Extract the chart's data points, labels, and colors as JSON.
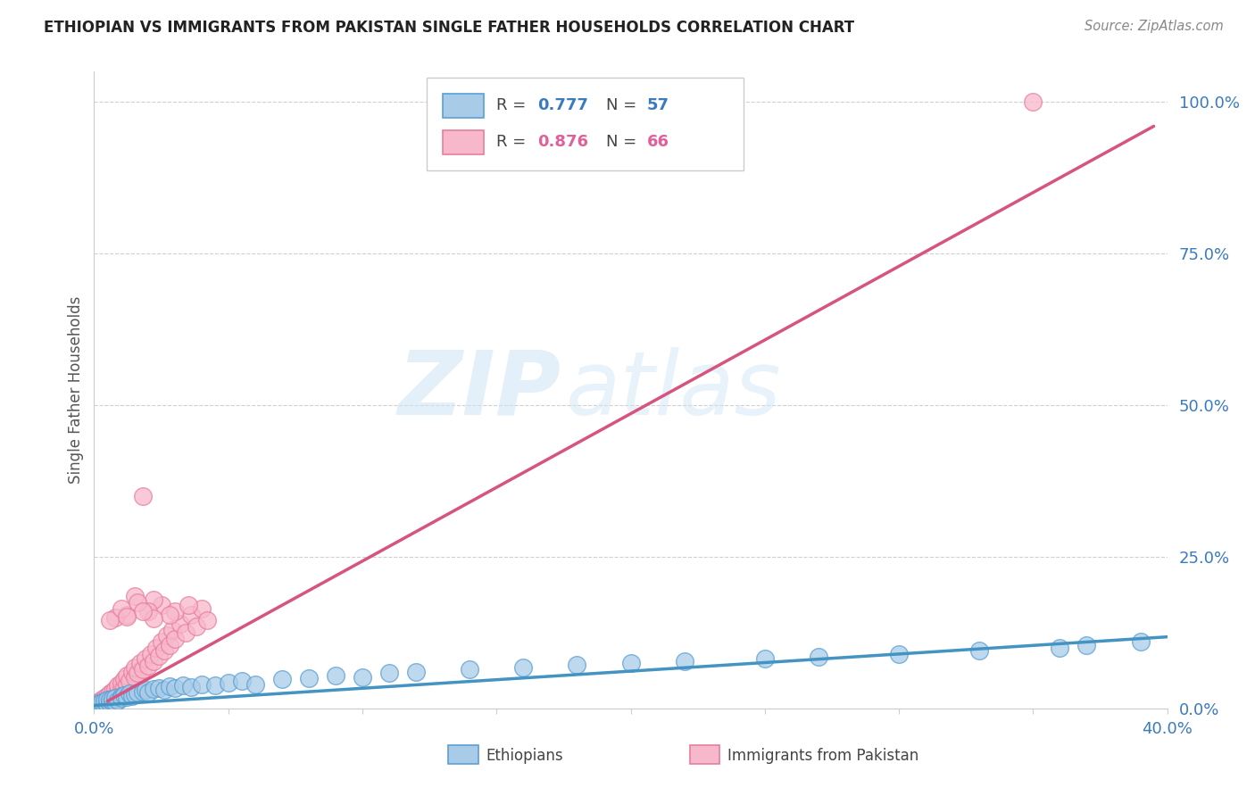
{
  "title": "ETHIOPIAN VS IMMIGRANTS FROM PAKISTAN SINGLE FATHER HOUSEHOLDS CORRELATION CHART",
  "source": "Source: ZipAtlas.com",
  "ylabel_label": "Single Father Households",
  "x_min": 0.0,
  "x_max": 0.4,
  "y_min": 0.0,
  "y_max": 1.05,
  "x_ticks": [
    0.0,
    0.05,
    0.1,
    0.15,
    0.2,
    0.25,
    0.3,
    0.35,
    0.4
  ],
  "y_ticks": [
    0.0,
    0.25,
    0.5,
    0.75,
    1.0
  ],
  "y_tick_labels_right": [
    "0.0%",
    "25.0%",
    "50.0%",
    "75.0%",
    "100.0%"
  ],
  "watermark_zip": "ZIP",
  "watermark_atlas": "atlas",
  "legend_r1_label": "R = ",
  "legend_r1_val": "0.777",
  "legend_n1_label": "N = ",
  "legend_n1_val": "57",
  "legend_r2_label": "R = ",
  "legend_r2_val": "0.876",
  "legend_n2_label": "N = ",
  "legend_n2_val": "66",
  "blue_fill": "#a8cce8",
  "blue_edge": "#5a9fd4",
  "blue_line": "#4393c3",
  "pink_fill": "#f7b8cb",
  "pink_edge": "#e87da0",
  "pink_line": "#d6547e",
  "background_color": "#ffffff",
  "ethiopians_scatter_x": [
    0.001,
    0.002,
    0.002,
    0.003,
    0.003,
    0.004,
    0.004,
    0.005,
    0.005,
    0.006,
    0.006,
    0.007,
    0.007,
    0.008,
    0.008,
    0.009,
    0.01,
    0.01,
    0.011,
    0.012,
    0.013,
    0.014,
    0.015,
    0.016,
    0.018,
    0.019,
    0.02,
    0.022,
    0.024,
    0.026,
    0.028,
    0.03,
    0.033,
    0.036,
    0.04,
    0.045,
    0.05,
    0.055,
    0.06,
    0.07,
    0.08,
    0.09,
    0.1,
    0.11,
    0.12,
    0.14,
    0.16,
    0.18,
    0.2,
    0.22,
    0.25,
    0.27,
    0.3,
    0.33,
    0.36,
    0.37,
    0.39
  ],
  "ethiopians_scatter_y": [
    0.003,
    0.005,
    0.008,
    0.004,
    0.01,
    0.006,
    0.012,
    0.007,
    0.015,
    0.009,
    0.014,
    0.011,
    0.016,
    0.01,
    0.018,
    0.013,
    0.02,
    0.017,
    0.022,
    0.019,
    0.025,
    0.021,
    0.023,
    0.026,
    0.028,
    0.03,
    0.027,
    0.032,
    0.034,
    0.031,
    0.036,
    0.033,
    0.038,
    0.035,
    0.04,
    0.038,
    0.042,
    0.045,
    0.04,
    0.048,
    0.05,
    0.055,
    0.052,
    0.058,
    0.06,
    0.065,
    0.068,
    0.072,
    0.075,
    0.078,
    0.082,
    0.085,
    0.09,
    0.095,
    0.1,
    0.105,
    0.11
  ],
  "pakistan_scatter_x": [
    0.001,
    0.001,
    0.002,
    0.002,
    0.003,
    0.003,
    0.004,
    0.004,
    0.005,
    0.005,
    0.006,
    0.006,
    0.007,
    0.007,
    0.008,
    0.008,
    0.009,
    0.009,
    0.01,
    0.01,
    0.011,
    0.011,
    0.012,
    0.012,
    0.013,
    0.014,
    0.015,
    0.015,
    0.016,
    0.017,
    0.018,
    0.019,
    0.02,
    0.021,
    0.022,
    0.023,
    0.024,
    0.025,
    0.026,
    0.027,
    0.028,
    0.029,
    0.03,
    0.032,
    0.034,
    0.036,
    0.038,
    0.04,
    0.042,
    0.025,
    0.018,
    0.022,
    0.015,
    0.012,
    0.008,
    0.006,
    0.02,
    0.016,
    0.01,
    0.03,
    0.035,
    0.028,
    0.022,
    0.018,
    0.012,
    0.35
  ],
  "pakistan_scatter_y": [
    0.003,
    0.008,
    0.005,
    0.012,
    0.007,
    0.015,
    0.01,
    0.018,
    0.012,
    0.02,
    0.015,
    0.025,
    0.018,
    0.028,
    0.022,
    0.032,
    0.026,
    0.038,
    0.03,
    0.042,
    0.035,
    0.048,
    0.04,
    0.055,
    0.045,
    0.06,
    0.052,
    0.068,
    0.058,
    0.075,
    0.065,
    0.082,
    0.07,
    0.09,
    0.078,
    0.1,
    0.086,
    0.11,
    0.095,
    0.12,
    0.105,
    0.13,
    0.115,
    0.14,
    0.125,
    0.155,
    0.135,
    0.165,
    0.145,
    0.17,
    0.35,
    0.18,
    0.185,
    0.155,
    0.15,
    0.145,
    0.16,
    0.175,
    0.165,
    0.16,
    0.17,
    0.155,
    0.148,
    0.16,
    0.152,
    1.0
  ],
  "blue_trend_x": [
    0.0,
    0.4
  ],
  "blue_trend_y": [
    0.005,
    0.118
  ],
  "pink_trend_x": [
    0.005,
    0.395
  ],
  "pink_trend_y": [
    0.012,
    0.96
  ]
}
